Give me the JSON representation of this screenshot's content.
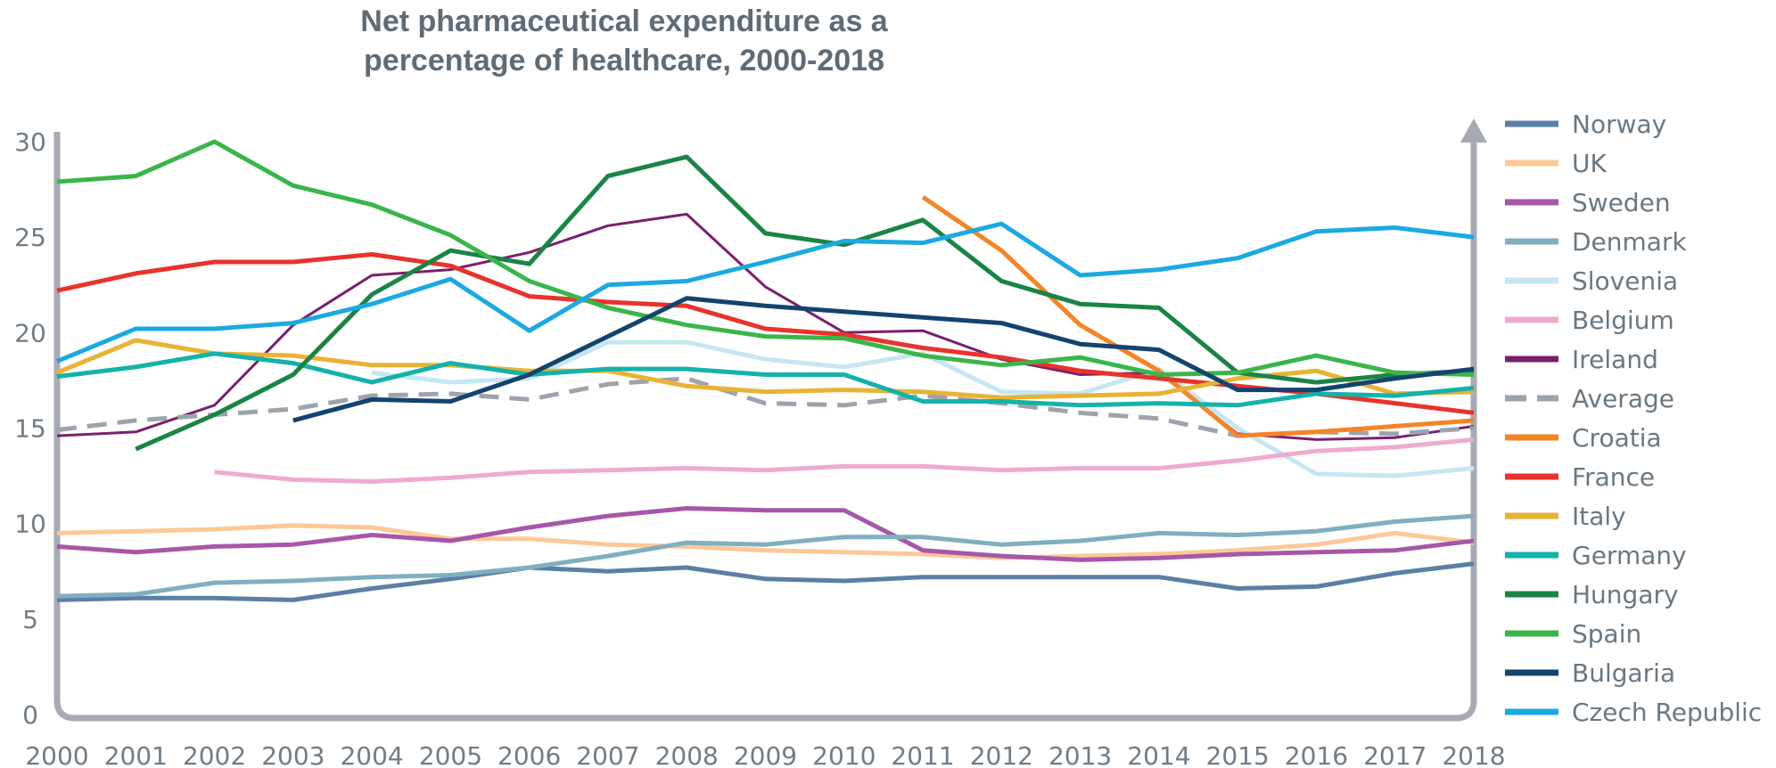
{
  "chart_data": {
    "type": "line",
    "title_line1": "Net pharmaceutical expenditure as a",
    "title_line2": "percentage of healthcare, 2000-2018",
    "xlabel": "",
    "ylabel": "",
    "ylim": [
      0,
      30
    ],
    "y_ticks": [
      "0",
      "5",
      "10",
      "15",
      "20",
      "25",
      "30"
    ],
    "x": [
      "2000",
      "2001",
      "2002",
      "2003",
      "2004",
      "2005",
      "2006",
      "2007",
      "2008",
      "2009",
      "2010",
      "2011",
      "2012",
      "2013",
      "2014",
      "2015",
      "2016",
      "2017",
      "2018"
    ],
    "grid": false,
    "legend_position": "right",
    "series": [
      {
        "name": "Norway",
        "color": "#5b7fa6",
        "width": 5,
        "dash": false,
        "values": [
          6.0,
          6.1,
          6.1,
          6.0,
          6.6,
          7.1,
          7.7,
          7.5,
          7.7,
          7.1,
          7.0,
          7.2,
          7.2,
          7.2,
          7.2,
          6.6,
          6.7,
          7.4,
          7.9
        ]
      },
      {
        "name": "UK",
        "color": "#fcc897",
        "width": 5,
        "dash": false,
        "values": [
          9.5,
          9.6,
          9.7,
          9.9,
          9.8,
          9.2,
          9.2,
          8.9,
          8.8,
          8.6,
          8.5,
          8.4,
          8.2,
          8.3,
          8.4,
          8.6,
          8.9,
          9.5,
          9.0
        ]
      },
      {
        "name": "Sweden",
        "color": "#a657a8",
        "width": 5,
        "dash": false,
        "values": [
          8.8,
          8.5,
          8.8,
          8.9,
          9.4,
          9.1,
          9.8,
          10.4,
          10.8,
          10.7,
          10.7,
          8.6,
          8.3,
          8.1,
          8.2,
          8.4,
          8.5,
          8.6,
          9.1
        ]
      },
      {
        "name": "Denmark",
        "color": "#7fafc0",
        "width": 5,
        "dash": false,
        "values": [
          6.2,
          6.3,
          6.9,
          7.0,
          7.2,
          7.3,
          7.7,
          8.3,
          9.0,
          8.9,
          9.3,
          9.3,
          8.9,
          9.1,
          9.5,
          9.4,
          9.6,
          10.1,
          10.4
        ]
      },
      {
        "name": "Slovenia",
        "color": "#c5e6f2",
        "width": 5,
        "dash": false,
        "values": [
          null,
          null,
          null,
          null,
          17.9,
          17.4,
          17.6,
          19.5,
          19.5,
          18.6,
          18.2,
          18.9,
          16.9,
          16.8,
          18.1,
          15.0,
          12.6,
          12.5,
          12.9
        ]
      },
      {
        "name": "Belgium",
        "color": "#efaad0",
        "width": 5,
        "dash": false,
        "values": [
          null,
          null,
          12.7,
          12.3,
          12.2,
          12.4,
          12.7,
          12.8,
          12.9,
          12.8,
          13.0,
          13.0,
          12.8,
          12.9,
          12.9,
          13.3,
          13.8,
          14.0,
          14.4
        ]
      },
      {
        "name": "Ireland",
        "color": "#7a1f6e",
        "width": 3,
        "dash": false,
        "values": [
          14.6,
          14.8,
          16.2,
          20.4,
          23.0,
          23.3,
          24.2,
          25.6,
          26.2,
          22.4,
          20.0,
          20.1,
          18.6,
          17.8,
          17.9,
          14.7,
          14.4,
          14.5,
          15.1
        ]
      },
      {
        "name": "Average",
        "color": "#9da3ad",
        "width": 5,
        "dash": true,
        "values": [
          14.9,
          15.4,
          15.7,
          16.0,
          16.7,
          16.8,
          16.5,
          17.3,
          17.6,
          16.3,
          16.2,
          16.7,
          16.3,
          15.8,
          15.5,
          14.6,
          14.8,
          14.7,
          15.0
        ]
      },
      {
        "name": "Croatia",
        "color": "#f58426",
        "width": 5,
        "dash": false,
        "values": [
          null,
          null,
          null,
          null,
          null,
          null,
          null,
          null,
          null,
          null,
          null,
          27.1,
          24.3,
          20.4,
          18.0,
          14.6,
          14.8,
          15.1,
          15.4
        ]
      },
      {
        "name": "France",
        "color": "#e8332d",
        "width": 5,
        "dash": false,
        "values": [
          22.2,
          23.1,
          23.7,
          23.7,
          24.1,
          23.5,
          21.9,
          21.6,
          21.4,
          20.2,
          19.9,
          19.2,
          18.7,
          18.0,
          17.6,
          17.2,
          16.8,
          16.3,
          15.8
        ]
      },
      {
        "name": "Italy",
        "color": "#e8b334",
        "width": 5,
        "dash": false,
        "values": [
          17.9,
          19.6,
          18.9,
          18.8,
          18.3,
          18.3,
          18.0,
          18.0,
          17.2,
          16.9,
          17.0,
          16.9,
          16.6,
          16.7,
          16.8,
          17.6,
          18.0,
          16.8,
          16.9
        ]
      },
      {
        "name": "Germany",
        "color": "#13b2ab",
        "width": 5,
        "dash": false,
        "values": [
          17.7,
          18.2,
          18.9,
          18.4,
          17.4,
          18.4,
          17.8,
          18.1,
          18.1,
          17.8,
          17.8,
          16.4,
          16.4,
          16.2,
          16.3,
          16.2,
          16.8,
          16.7,
          17.1
        ]
      },
      {
        "name": "Hungary",
        "color": "#1a8446",
        "width": 5,
        "dash": false,
        "values": [
          null,
          13.9,
          15.7,
          17.8,
          22.0,
          24.3,
          23.6,
          28.2,
          29.2,
          25.2,
          24.6,
          25.9,
          22.7,
          21.5,
          21.3,
          17.9,
          17.4,
          17.8,
          18.0
        ]
      },
      {
        "name": "Spain",
        "color": "#3bb54a",
        "width": 5,
        "dash": false,
        "values": [
          27.9,
          28.2,
          30.0,
          27.7,
          26.7,
          25.1,
          22.7,
          21.3,
          20.4,
          19.8,
          19.7,
          18.8,
          18.3,
          18.7,
          17.8,
          17.9,
          18.8,
          17.9,
          17.8
        ]
      },
      {
        "name": "Bulgaria",
        "color": "#13436e",
        "width": 5,
        "dash": false,
        "values": [
          null,
          null,
          null,
          15.4,
          16.5,
          16.4,
          17.8,
          19.8,
          21.8,
          21.4,
          21.1,
          20.8,
          20.5,
          19.4,
          19.1,
          17.0,
          17.0,
          17.6,
          18.1
        ]
      },
      {
        "name": "Czech Republic",
        "color": "#1ba9e2",
        "width": 5,
        "dash": false,
        "values": [
          18.5,
          20.2,
          20.2,
          20.5,
          21.5,
          22.8,
          20.1,
          22.5,
          22.7,
          23.7,
          24.8,
          24.7,
          25.7,
          23.0,
          23.3,
          23.9,
          25.3,
          25.5,
          25.0
        ]
      }
    ]
  }
}
